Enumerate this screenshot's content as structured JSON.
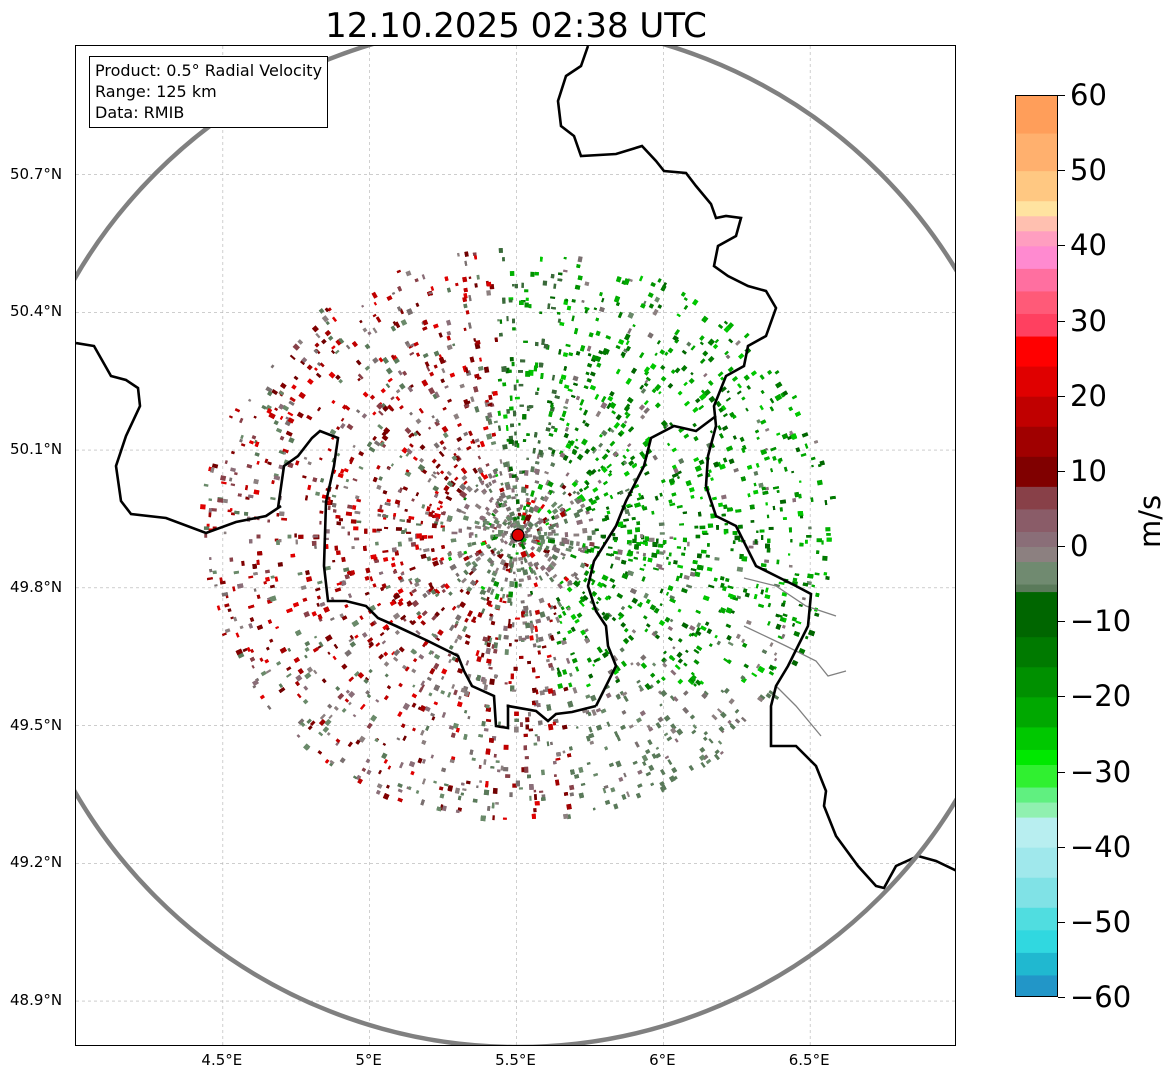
{
  "title": "12.10.2025 02:38 UTC",
  "info": {
    "product": "Product: 0.5° Radial Velocity",
    "range": "Range: 125 km",
    "source": "Data: RMIB"
  },
  "map": {
    "lon_range": [
      4.0,
      7.0
    ],
    "lat_range": [
      48.8,
      50.98
    ],
    "radar_site": {
      "lon": 5.505,
      "lat": 49.915
    },
    "range_km": 125,
    "lat_ticks": [
      {
        "value": 50.7,
        "label": "50.7°N"
      },
      {
        "value": 50.4,
        "label": "50.4°N"
      },
      {
        "value": 50.1,
        "label": "50.1°N"
      },
      {
        "value": 49.8,
        "label": "49.8°N"
      },
      {
        "value": 49.5,
        "label": "49.5°N"
      },
      {
        "value": 49.2,
        "label": "49.2°N"
      },
      {
        "value": 48.9,
        "label": "48.9°N"
      }
    ],
    "lon_ticks": [
      {
        "value": 4.5,
        "label": "4.5°E"
      },
      {
        "value": 5.0,
        "label": "5°E"
      },
      {
        "value": 5.5,
        "label": "5.5°E"
      },
      {
        "value": 6.0,
        "label": "6°E"
      },
      {
        "value": 6.5,
        "label": "6.5°E"
      }
    ],
    "gridlines": true,
    "colors": {
      "range_ring": "#808080",
      "border": "#000000",
      "gridline": "#b0b0b0",
      "site_marker": "#e00000"
    }
  },
  "colorbar": {
    "unit": "m/s",
    "min": -60,
    "max": 60,
    "ticks": [
      {
        "value": 60,
        "label": "60"
      },
      {
        "value": 50,
        "label": "50"
      },
      {
        "value": 40,
        "label": "40"
      },
      {
        "value": 30,
        "label": "30"
      },
      {
        "value": 20,
        "label": "20"
      },
      {
        "value": 10,
        "label": "10"
      },
      {
        "value": 0,
        "label": "0"
      },
      {
        "value": -10,
        "label": "−10"
      },
      {
        "value": -20,
        "label": "−20"
      },
      {
        "value": -30,
        "label": "−30"
      },
      {
        "value": -40,
        "label": "−40"
      },
      {
        "value": -50,
        "label": "−50"
      },
      {
        "value": -60,
        "label": "−60"
      }
    ],
    "stops": [
      {
        "v": 60,
        "c": "#ff9e5a"
      },
      {
        "v": 55,
        "c": "#ffb06e"
      },
      {
        "v": 50,
        "c": "#ffc882"
      },
      {
        "v": 46,
        "c": "#ffe3a0"
      },
      {
        "v": 44,
        "c": "#ffc0b0"
      },
      {
        "v": 42,
        "c": "#ff9ec0"
      },
      {
        "v": 40,
        "c": "#ff8ad0"
      },
      {
        "v": 37,
        "c": "#ff6fa0"
      },
      {
        "v": 34,
        "c": "#ff5a78"
      },
      {
        "v": 31,
        "c": "#ff4060"
      },
      {
        "v": 28,
        "c": "#ff0000"
      },
      {
        "v": 24,
        "c": "#e00000"
      },
      {
        "v": 20,
        "c": "#c00000"
      },
      {
        "v": 16,
        "c": "#a00000"
      },
      {
        "v": 12,
        "c": "#800000"
      },
      {
        "v": 8,
        "c": "#884048"
      },
      {
        "v": 5,
        "c": "#8a5c68"
      },
      {
        "v": 2,
        "c": "#8a6e78"
      },
      {
        "v": 0,
        "c": "#8c8080"
      },
      {
        "v": -2,
        "c": "#708a70"
      },
      {
        "v": -5,
        "c": "#5a7a5a"
      },
      {
        "v": -6,
        "c": "#006600"
      },
      {
        "v": -12,
        "c": "#007a00"
      },
      {
        "v": -16,
        "c": "#009000"
      },
      {
        "v": -20,
        "c": "#00a800"
      },
      {
        "v": -24,
        "c": "#00c800"
      },
      {
        "v": -27,
        "c": "#00e800"
      },
      {
        "v": -29,
        "c": "#30f030"
      },
      {
        "v": -32,
        "c": "#60f080"
      },
      {
        "v": -34,
        "c": "#90f0b0"
      },
      {
        "v": -36,
        "c": "#b8eef0"
      },
      {
        "v": -40,
        "c": "#a0e8ec"
      },
      {
        "v": -44,
        "c": "#80e2e6"
      },
      {
        "v": -48,
        "c": "#50dde0"
      },
      {
        "v": -51,
        "c": "#30d8e0"
      },
      {
        "v": -54,
        "c": "#20b8d0"
      },
      {
        "v": -57,
        "c": "#2296c8"
      },
      {
        "v": -60,
        "c": "#1f77b4"
      }
    ]
  }
}
